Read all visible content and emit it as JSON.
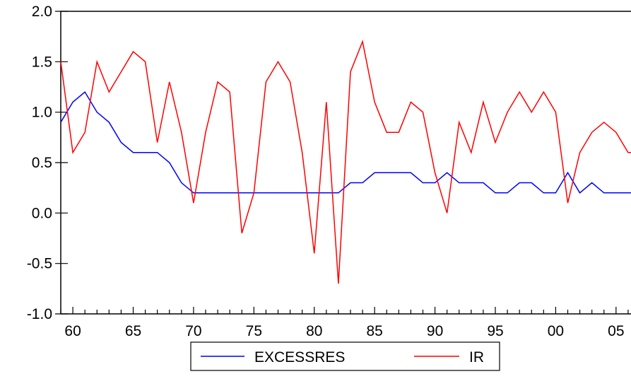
{
  "chart_data": {
    "type": "line",
    "title": "",
    "xlabel": "",
    "ylabel": "",
    "xlim": [
      1959,
      2007
    ],
    "ylim": [
      -1.0,
      2.0
    ],
    "grid": false,
    "legend_position": "bottom",
    "x_tick_values": [
      1960,
      1965,
      1970,
      1975,
      1980,
      1985,
      1990,
      1995,
      2000,
      2005
    ],
    "x_tick_labels": [
      "60",
      "65",
      "70",
      "75",
      "80",
      "85",
      "90",
      "95",
      "00",
      "05"
    ],
    "y_tick_values": [
      2.0,
      1.5,
      1.0,
      0.5,
      0.0,
      -0.5,
      -1.0
    ],
    "y_tick_labels": [
      "2.0",
      "1.5",
      "1.0",
      "0.5",
      "0.0",
      "-0.5",
      "-1.0"
    ],
    "x": [
      1959,
      1960,
      1961,
      1962,
      1963,
      1964,
      1965,
      1966,
      1967,
      1968,
      1969,
      1970,
      1971,
      1972,
      1973,
      1974,
      1975,
      1976,
      1977,
      1978,
      1979,
      1980,
      1981,
      1982,
      1983,
      1984,
      1985,
      1986,
      1987,
      1988,
      1989,
      1990,
      1991,
      1992,
      1993,
      1994,
      1995,
      1996,
      1997,
      1998,
      1999,
      2000,
      2001,
      2002,
      2003,
      2004,
      2005,
      2006,
      2007
    ],
    "series": [
      {
        "name": "EXCESSRES",
        "color": "#0000ff",
        "values": [
          0.9,
          1.1,
          1.2,
          1.0,
          0.9,
          0.7,
          0.6,
          0.6,
          0.6,
          0.5,
          0.3,
          0.2,
          0.2,
          0.2,
          0.2,
          0.2,
          0.2,
          0.2,
          0.2,
          0.2,
          0.2,
          0.2,
          0.2,
          0.2,
          0.3,
          0.3,
          0.4,
          0.4,
          0.4,
          0.4,
          0.3,
          0.3,
          0.4,
          0.3,
          0.3,
          0.3,
          0.2,
          0.2,
          0.3,
          0.3,
          0.2,
          0.2,
          0.4,
          0.2,
          0.3,
          0.2,
          0.2,
          0.2,
          0.2
        ]
      },
      {
        "name": "IR",
        "color": "#ff0000",
        "values": [
          1.5,
          0.6,
          0.8,
          1.5,
          1.2,
          1.4,
          1.6,
          1.5,
          0.7,
          1.3,
          0.8,
          0.1,
          0.8,
          1.3,
          1.2,
          -0.2,
          0.2,
          1.3,
          1.5,
          1.3,
          0.6,
          -0.4,
          1.1,
          -0.7,
          1.4,
          1.7,
          1.1,
          0.8,
          0.8,
          1.1,
          1.0,
          0.4,
          0.0,
          0.9,
          0.6,
          1.1,
          0.7,
          1.0,
          1.2,
          1.0,
          1.2,
          1.0,
          0.1,
          0.6,
          0.8,
          0.9,
          0.8,
          0.6,
          0.6
        ]
      }
    ]
  }
}
